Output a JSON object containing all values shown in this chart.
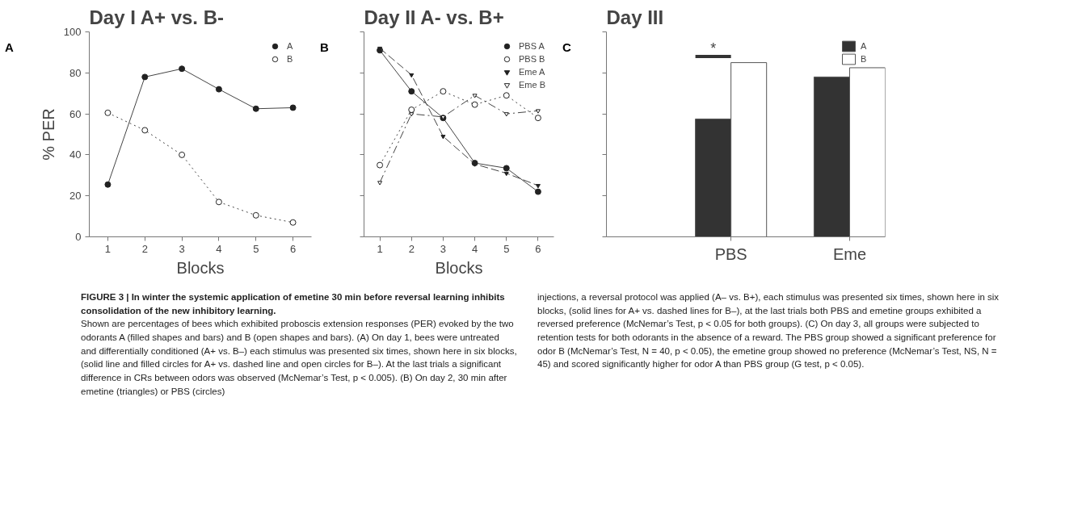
{
  "chart_data": [
    {
      "type": "line",
      "title": "Day I  A+ vs. B-",
      "xlabel": "Blocks",
      "ylabel": "% PER",
      "x": [
        1,
        2,
        3,
        4,
        5,
        6
      ],
      "xlim": [
        0.5,
        6.5
      ],
      "xticks": [
        1,
        2,
        3,
        4,
        5,
        6
      ],
      "ylim": [
        0,
        100
      ],
      "yticks": [
        0,
        20,
        40,
        60,
        80,
        100
      ],
      "legend": "top right",
      "grid": false,
      "series": [
        {
          "name": "A",
          "color": "#222222",
          "values": [
            25.5,
            78,
            82,
            72,
            62.5,
            63
          ],
          "marker": "circle",
          "line_style": "solid"
        },
        {
          "name": "B",
          "color": "#ffffff",
          "values": [
            60.5,
            52,
            40,
            17,
            10.5,
            7
          ],
          "marker": "circle",
          "line_style": "dotted"
        }
      ],
      "annotations": [
        "A",
        "FIGURE 3 | In winter the systemic application of emetine 30 min before reversal learning inhibits consolidation of the new inhibitory learning.",
        "Shown are percentages of bees which exhibited proboscis extension responses (PER) evoked by the two odorants A (filled shapes and bars) and B (open shapes and bars). (A) On day 1, bees were untreated and differentially conditioned (A+ vs. B–) each stimulus was presented six times, shown here in six blocks, (solid line and filled circles for A+ vs. dashed line and open circles for B–). At the last trials a significant difference in CRs between odors was observed (McNemar’s Test, p < 0.005). (B) On day 2, 30 min after emetine (triangles) or PBS (circles)",
        "injections, a reversal protocol was applied (A– vs. B+), each stimulus was presented six times, shown here in six blocks, (solid lines for A+ vs. dashed lines for B–), at the last trials both PBS and emetine groups exhibited a reversed preference (McNemar’s Test, p < 0.05 for both groups). (C) On day 3, all groups were subjected to retention tests for both odorants in the absence of a reward. The PBS group showed a significant preference for odor B (McNemar’s Test, N = 40, p < 0.05), the emetine group showed no preference (McNemar’s Test, NS, N = 45) and scored significantly higher for odor A than PBS group (G test, p < 0.05)."
      ]
    },
    {
      "type": "line",
      "title": "Day II  A- vs. B+",
      "xlabel": "Blocks",
      "x": [
        1,
        2,
        3,
        4,
        5,
        6
      ],
      "xlim": [
        0.5,
        6.5
      ],
      "xticks": [
        1,
        2,
        3,
        4,
        5,
        6
      ],
      "ylim": [
        0,
        100
      ],
      "yticks": [
        0,
        20,
        40,
        60,
        80,
        100
      ],
      "tick_labels": "x",
      "legend": "top right",
      "grid": false,
      "series": [
        {
          "name": "PBS A",
          "color": "#222222",
          "values": [
            91,
            71,
            58,
            36,
            33.5,
            22
          ],
          "marker": "circle",
          "line_style": "solid"
        },
        {
          "name": "PBS B",
          "color": "#ffffff",
          "values": [
            35,
            62,
            71,
            64.5,
            69,
            58
          ],
          "marker": "circle",
          "line_style": "dotted"
        },
        {
          "name": "Eme A",
          "color": "#222222",
          "values": [
            92,
            79,
            49,
            35.5,
            31,
            25
          ],
          "marker": "triangle",
          "line_style": "dashed"
        },
        {
          "name": "Eme B",
          "color": "#ffffff",
          "values": [
            26.5,
            60,
            58.5,
            69,
            60,
            61.5
          ],
          "marker": "triangle",
          "line_style": "dashdot"
        }
      ],
      "annotations": [
        "B"
      ]
    },
    {
      "type": "bar",
      "title": "Day III",
      "categories": [
        "PBS",
        "Eme"
      ],
      "ylim": [
        0,
        100
      ],
      "yticks": [
        0,
        20,
        40,
        60,
        80,
        100
      ],
      "tick_labels": "x",
      "legend": "top right",
      "grid": false,
      "series": [
        {
          "name": "A",
          "color": "#333333",
          "values": [
            57.5,
            78
          ]
        },
        {
          "name": "B",
          "color": "#ffffff",
          "values": [
            85,
            82.5
          ]
        }
      ],
      "annotations": [
        "C",
        "*"
      ]
    }
  ]
}
